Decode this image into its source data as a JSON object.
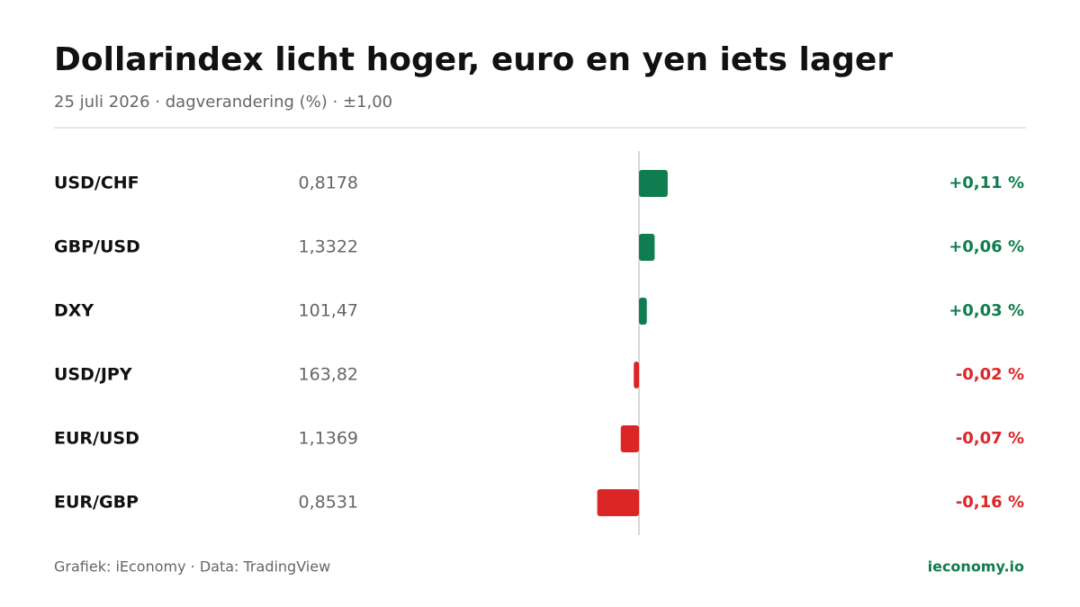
{
  "chart_data": {
    "type": "bar",
    "title": "Dollarindex licht hoger, euro en yen iets lager",
    "subtitle": "25 juli 2026 · dagverandering (%) · ±1,00",
    "categories": [
      "USD/CHF",
      "GBP/USD",
      "DXY",
      "USD/JPY",
      "EUR/USD",
      "EUR/GBP"
    ],
    "rates": [
      "0,8178",
      "1,3322",
      "101,47",
      "163,82",
      "1,1369",
      "0,8531"
    ],
    "values": [
      0.11,
      0.06,
      0.03,
      -0.02,
      -0.07,
      -0.16
    ],
    "value_labels": [
      "+0,11 %",
      "+0,06 %",
      "+0,03 %",
      "-0,02 %",
      "-0,07 %",
      "-0,16 %"
    ],
    "xlim": [
      -1,
      1
    ],
    "positive_color": "#0f7d4f",
    "negative_color": "#dc2626",
    "source": "Grafiek: iEconomy · Data: TradingView",
    "brand": "ieconomy.io"
  }
}
